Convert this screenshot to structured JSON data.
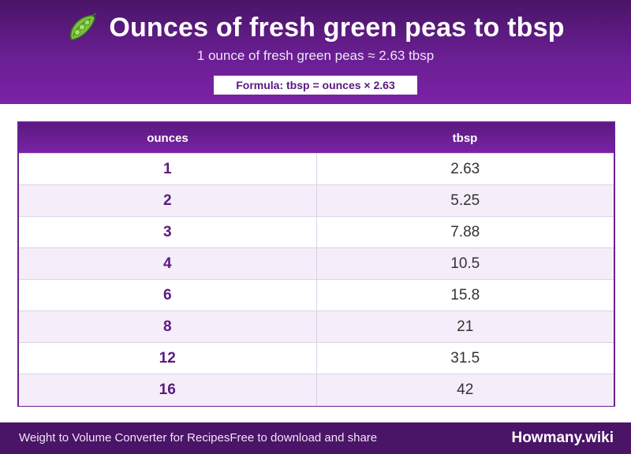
{
  "header": {
    "icon": "pea-pod-icon",
    "title": "Ounces of fresh green peas to tbsp",
    "subtitle": "1 ounce of fresh green peas ≈ 2.63 tbsp",
    "formula": "Formula: tbsp = ounces × 2.63"
  },
  "table": {
    "columns": [
      "ounces",
      "tbsp"
    ],
    "rows": [
      {
        "ounces": "1",
        "tbsp": "2.63"
      },
      {
        "ounces": "2",
        "tbsp": "5.25"
      },
      {
        "ounces": "3",
        "tbsp": "7.88"
      },
      {
        "ounces": "4",
        "tbsp": "10.5"
      },
      {
        "ounces": "6",
        "tbsp": "15.8"
      },
      {
        "ounces": "8",
        "tbsp": "21"
      },
      {
        "ounces": "12",
        "tbsp": "31.5"
      },
      {
        "ounces": "16",
        "tbsp": "42"
      }
    ]
  },
  "footer": {
    "left_text": "Weight to Volume Converter for Recipes",
    "left_subtext": "Free to download and share",
    "brand": "Howmany.wiki"
  },
  "colors": {
    "primary": "#6a1f93",
    "dark": "#4a1467",
    "row_alt": "#f5eefa"
  }
}
